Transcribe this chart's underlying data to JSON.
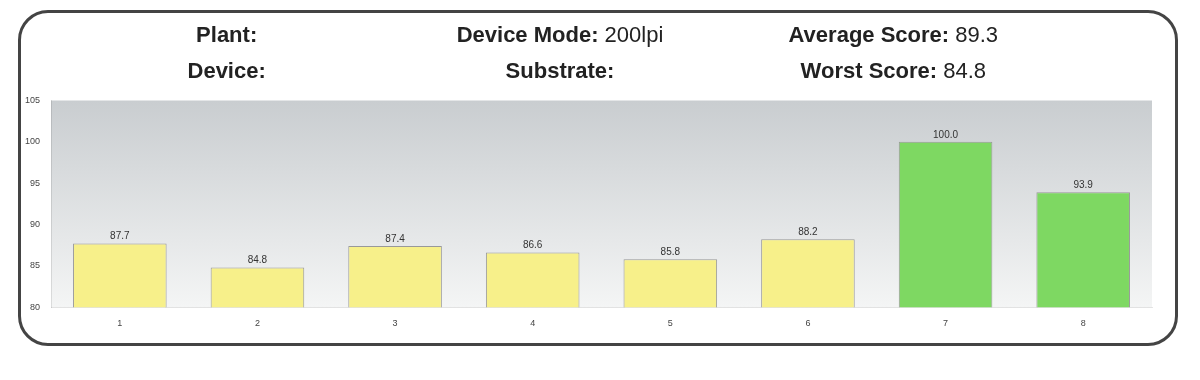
{
  "chart_data": {
    "type": "bar",
    "annotations": [
      "Plant:",
      "Device:",
      "Device Mode: 200lpi",
      "Substrate:",
      "Average Score: 89.3",
      "Worst Score: 84.8"
    ],
    "categories": [
      "1",
      "2",
      "3",
      "4",
      "5",
      "6",
      "7",
      "8"
    ],
    "values": [
      87.7,
      84.8,
      87.4,
      86.6,
      85.8,
      88.2,
      100.0,
      93.9
    ],
    "value_labels": [
      "87.7",
      "84.8",
      "87.4",
      "86.6",
      "85.8",
      "88.2",
      "100.0",
      "93.9"
    ],
    "colors": [
      "#f7f08a",
      "#f7f08a",
      "#f7f08a",
      "#f7f08a",
      "#f7f08a",
      "#f7f08a",
      "#7ed862",
      "#7ed862"
    ],
    "ylim": [
      80,
      105
    ],
    "yticks": [
      80,
      85,
      90,
      95,
      100,
      105
    ],
    "grid": false,
    "legend": false
  }
}
